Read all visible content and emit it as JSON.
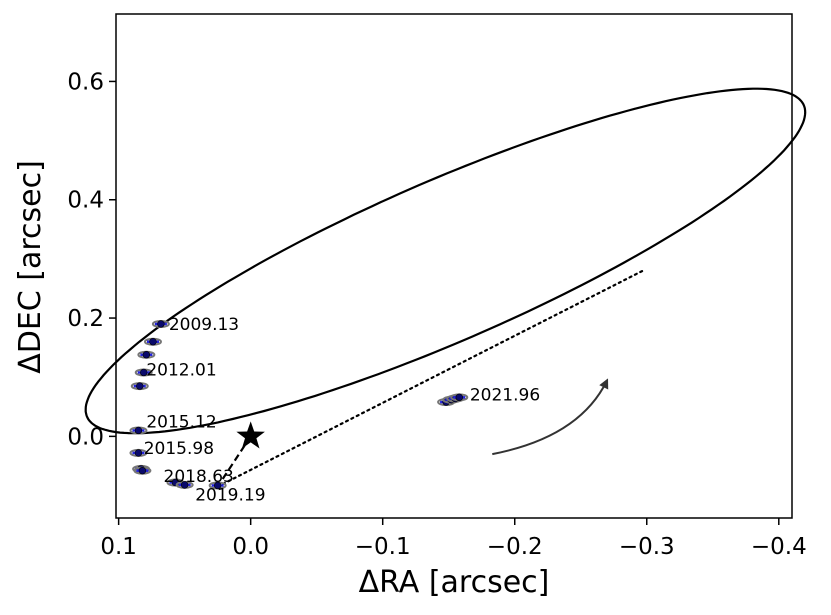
{
  "chart_data": {
    "type": "scatter",
    "xlabel": "ΔRA [arcsec]",
    "ylabel": "ΔDEC [arcsec]",
    "xlim": [
      0.102,
      -0.41
    ],
    "ylim": [
      -0.138,
      0.714
    ],
    "x_inverted": true,
    "xticks": [
      0.1,
      0.0,
      -0.1,
      -0.2,
      -0.3,
      -0.4
    ],
    "xtick_labels": [
      "0.1",
      "0.0",
      "−0.1",
      "−0.2",
      "−0.3",
      "−0.4"
    ],
    "yticks": [
      0.0,
      0.2,
      0.4,
      0.6
    ],
    "ytick_labels": [
      "0.0",
      "0.2",
      "0.4",
      "0.6"
    ],
    "grid": false,
    "star": {
      "x": 0.0,
      "y": 0.0
    },
    "orbit_ellipse": {
      "center": [
        -0.1475,
        0.2965
      ],
      "semi_major": 0.385,
      "semi_minor": 0.104,
      "angle_deg": 47.2
    },
    "line_of_nodes": {
      "from": [
        0.025,
        -0.085
      ],
      "to": [
        -0.297,
        0.28
      ]
    },
    "periastron_line": {
      "from": [
        0.0,
        0.0
      ],
      "to": [
        0.025,
        -0.085
      ]
    },
    "points": [
      {
        "x": 0.068,
        "y": 0.19
      },
      {
        "x": 0.074,
        "y": 0.16
      },
      {
        "x": 0.079,
        "y": 0.138
      },
      {
        "x": 0.081,
        "y": 0.108
      },
      {
        "x": 0.084,
        "y": 0.085
      },
      {
        "x": 0.085,
        "y": 0.01
      },
      {
        "x": 0.085,
        "y": -0.028
      },
      {
        "x": 0.083,
        "y": -0.055
      },
      {
        "x": 0.082,
        "y": -0.058
      },
      {
        "x": 0.057,
        "y": -0.078
      },
      {
        "x": 0.05,
        "y": -0.082
      },
      {
        "x": 0.025,
        "y": -0.083
      },
      {
        "x": -0.148,
        "y": 0.058
      },
      {
        "x": -0.152,
        "y": 0.062
      },
      {
        "x": -0.155,
        "y": 0.064
      },
      {
        "x": -0.158,
        "y": 0.066
      }
    ],
    "annotations": [
      {
        "text": "2009.13",
        "x": 0.062,
        "y": 0.19
      },
      {
        "text": "2012.01",
        "x": 0.079,
        "y": 0.113
      },
      {
        "text": "2015.12",
        "x": 0.079,
        "y": 0.025
      },
      {
        "text": "2015.98",
        "x": 0.081,
        "y": -0.02
      },
      {
        "text": "2018.63",
        "x": 0.066,
        "y": -0.067
      },
      {
        "text": "2019.19",
        "x": 0.042,
        "y": -0.098
      },
      {
        "text": "2021.96",
        "x": -0.166,
        "y": 0.071
      }
    ],
    "motion_arrow": {
      "from": [
        -0.183,
        -0.03
      ],
      "to": [
        -0.27,
        0.095
      ]
    }
  }
}
